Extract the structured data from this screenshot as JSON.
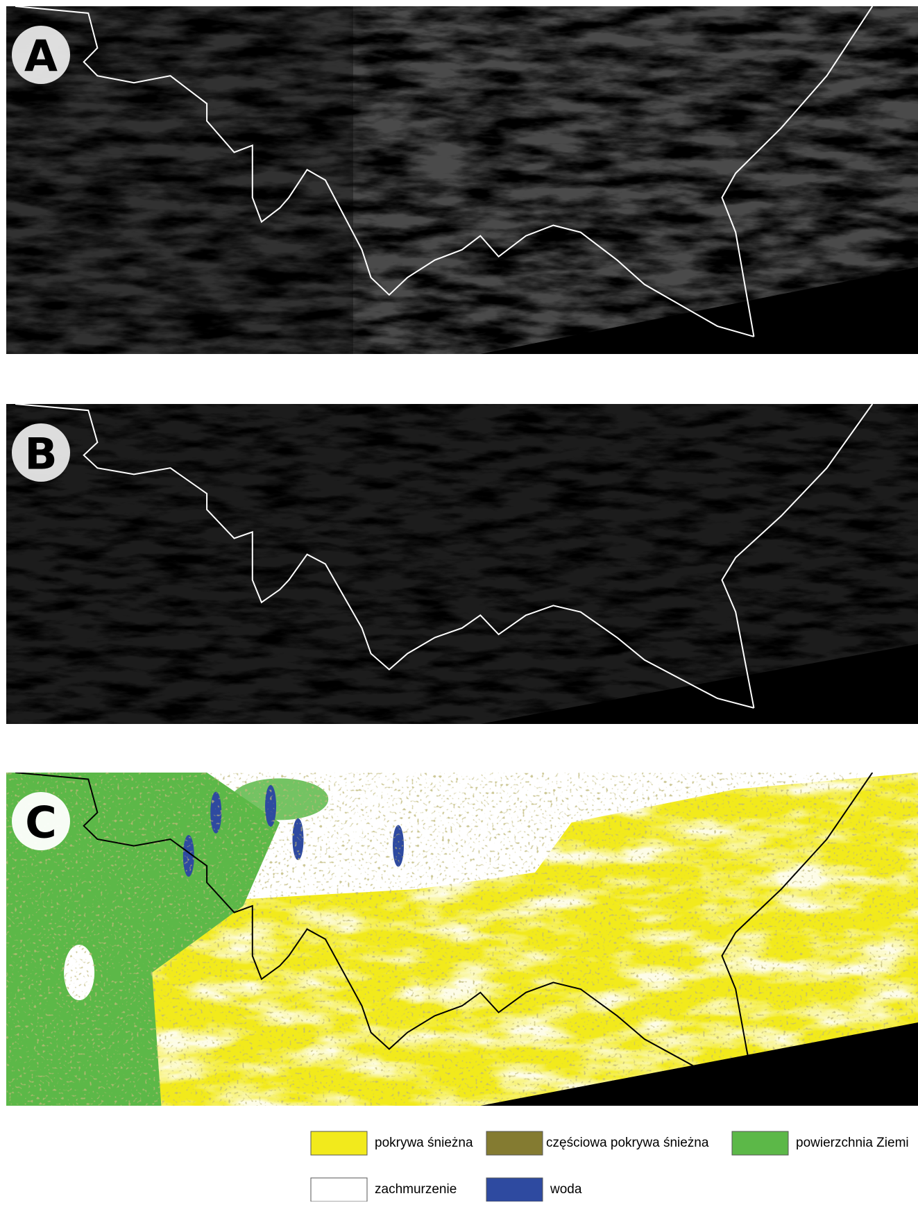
{
  "panels": [
    {
      "label": "A"
    },
    {
      "label": "B"
    },
    {
      "label": "C"
    }
  ],
  "legend": [
    {
      "label": "pokrywa śnieżna",
      "color": "#f2ea1c"
    },
    {
      "label": "częściowa pokrywa śnieżna",
      "color": "#847b31"
    },
    {
      "label": "powierzchnia Ziemi",
      "color": "#5cb848"
    },
    {
      "label": "zachmurzenie",
      "color": "#ffffff"
    },
    {
      "label": "woda",
      "color": "#2e4aa0"
    }
  ]
}
